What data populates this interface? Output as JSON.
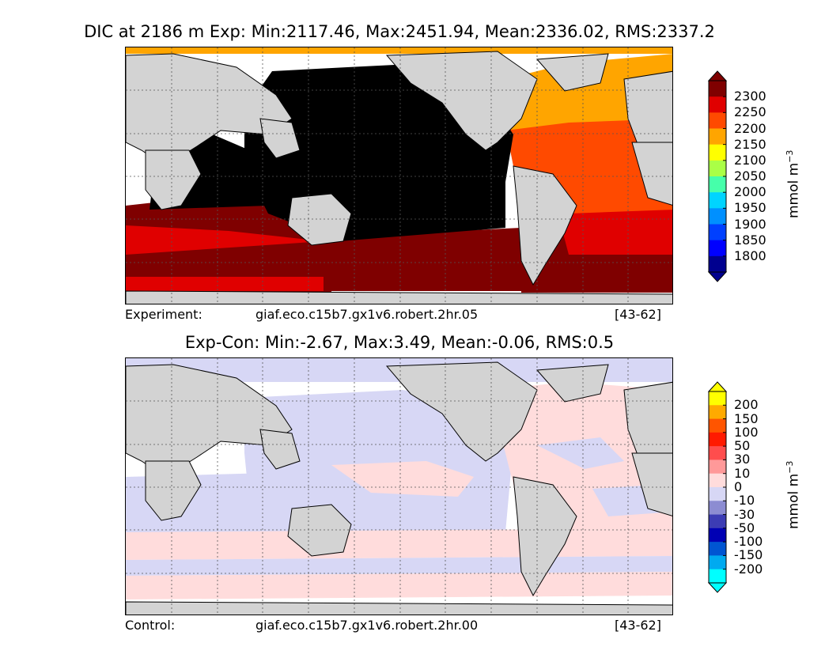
{
  "panels": [
    {
      "title": "DIC at 2186 m Exp: Min:2117.46, Max:2451.94, Mean:2336.02, RMS:2337.2",
      "footer_left": "Experiment:",
      "footer_mid": "giaf.eco.c15b7.gx1v6.robert.2hr.05",
      "footer_right": "[43-62]",
      "colorbar": {
        "units_base": "mmol m",
        "units_exp": "−3",
        "ticks": [
          "2300",
          "2250",
          "2200",
          "2150",
          "2100",
          "2050",
          "2000",
          "1950",
          "1900",
          "1850",
          "1800"
        ],
        "colors_top_to_bottom": [
          "#7f0000",
          "#e00000",
          "#ff4a00",
          "#ffa500",
          "#ffff00",
          "#aaff46",
          "#46ffaa",
          "#00d4ff",
          "#0090ff",
          "#0040ff",
          "#0000ff",
          "#00008f"
        ],
        "extend_top": "#7f0000",
        "extend_bottom": "#00008f"
      }
    },
    {
      "title": "Exp-Con: Min:-2.67, Max:3.49, Mean:-0.06, RMS:0.5",
      "footer_left": "Control:",
      "footer_mid": "giaf.eco.c15b7.gx1v6.robert.2hr.00",
      "footer_right": "[43-62]",
      "colorbar": {
        "units_base": "mmol m",
        "units_exp": "−3",
        "ticks": [
          "200",
          "150",
          "100",
          "50",
          "30",
          "10",
          "0",
          "-10",
          "-30",
          "-50",
          "-100",
          "-150",
          "-200"
        ],
        "colors_top_to_bottom": [
          "#ffff00",
          "#ffaa00",
          "#ff5500",
          "#ff1a00",
          "#ff4d4d",
          "#ff9999",
          "#ffdcdc",
          "#d7d7f5",
          "#8c8cd2",
          "#3c3cb4",
          "#0000b4",
          "#0055d2",
          "#00aaf0",
          "#00ffff"
        ],
        "extend_top": "#ffff00",
        "extend_bottom": "#00ffff"
      }
    }
  ]
}
